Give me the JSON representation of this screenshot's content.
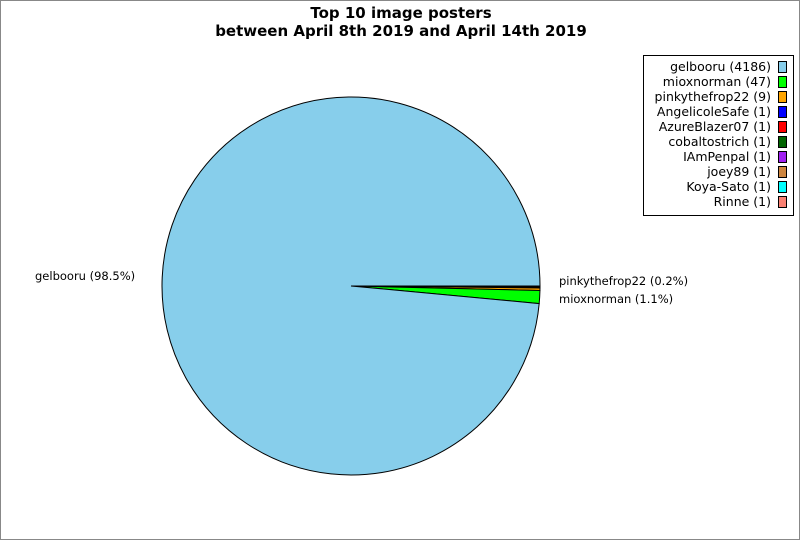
{
  "chart_data": {
    "type": "pie",
    "title": "Top 10 image posters",
    "subtitle": "between April 8th 2019 and April 14th 2019",
    "legend_placement": "top-right",
    "slices": [
      {
        "name": "gelbooru",
        "value": 4186,
        "legend": "gelbooru (4186)",
        "color": "#87CEEB"
      },
      {
        "name": "mioxnorman",
        "value": 47,
        "legend": "mioxnorman (47)",
        "color": "#00FF00"
      },
      {
        "name": "pinkythefrop22",
        "value": 9,
        "legend": "pinkythefrop22 (9)",
        "color": "#FFA500"
      },
      {
        "name": "AngelicoleSafe",
        "value": 1,
        "legend": "AngelicoleSafe (1)",
        "color": "#0000FF"
      },
      {
        "name": "AzureBlazer07",
        "value": 1,
        "legend": "AzureBlazer07 (1)",
        "color": "#FF0000"
      },
      {
        "name": "cobaltostrich",
        "value": 1,
        "legend": "cobaltostrich (1)",
        "color": "#006400"
      },
      {
        "name": "IAmPenpal",
        "value": 1,
        "legend": "IAmPenpal (1)",
        "color": "#A020F0"
      },
      {
        "name": "joey89",
        "value": 1,
        "legend": "joey89 (1)",
        "color": "#CD853F"
      },
      {
        "name": "Koya-Sato",
        "value": 1,
        "legend": "Koya-Sato (1)",
        "color": "#00FFFF"
      },
      {
        "name": "Rinne",
        "value": 1,
        "legend": "Rinne (1)",
        "color": "#FA8072"
      }
    ],
    "slice_labels": [
      {
        "text": "gelbooru (98.5%)"
      },
      {
        "text": "pinkythefrop22 (0.2%)"
      },
      {
        "text": "mioxnorman (1.1%)"
      }
    ]
  }
}
